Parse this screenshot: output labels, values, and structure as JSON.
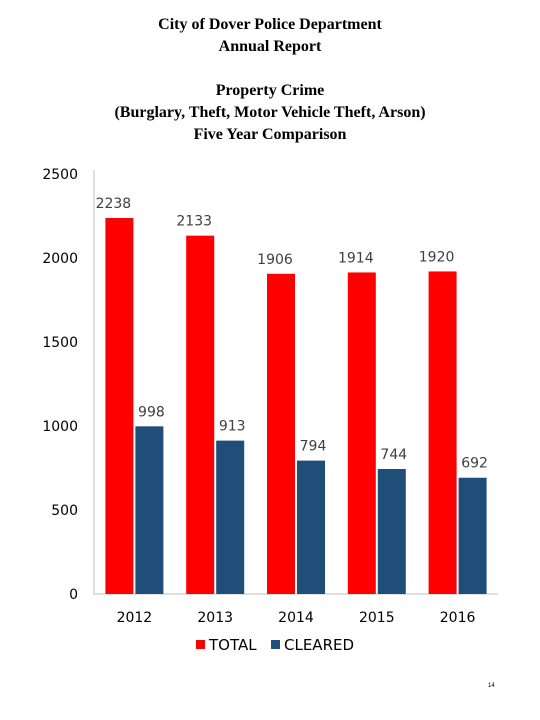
{
  "report": {
    "header_line1": "City of Dover Police Department",
    "header_line2": "Annual Report",
    "page_number": "14"
  },
  "chart_data": {
    "type": "bar",
    "title_lines": [
      "Property Crime",
      "(Burglary, Theft, Motor Vehicle Theft, Arson)",
      "Five Year Comparison"
    ],
    "categories": [
      "2012",
      "2013",
      "2014",
      "2015",
      "2016"
    ],
    "series": [
      {
        "name": "TOTAL",
        "values": [
          2238,
          2133,
          1906,
          1914,
          1920
        ],
        "color": "#ff0000"
      },
      {
        "name": "CLEARED",
        "values": [
          998,
          913,
          794,
          744,
          692
        ],
        "color": "#1f4e79"
      }
    ],
    "ylim": [
      0,
      2500
    ],
    "yticks": [
      "0",
      "500",
      "1000",
      "1500",
      "2000",
      "2500"
    ],
    "grid": false,
    "legend_position": "bottom"
  }
}
